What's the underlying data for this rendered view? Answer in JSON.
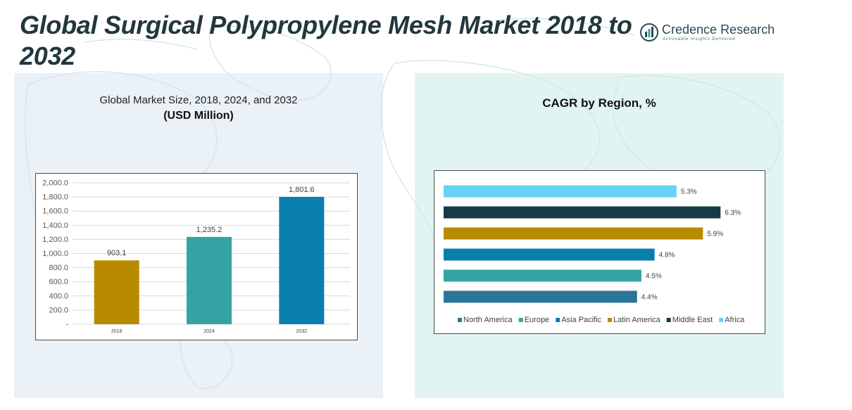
{
  "title": "Global Surgical Polypropylene Mesh Market 2018 to 2032",
  "brand": {
    "name_part1": "Credence",
    "name_part2": "Research",
    "tagline": "Actionable Insights Delivered",
    "logo_icon": "credence-logo-icon"
  },
  "colors": {
    "title": "#22373c",
    "bar_2018": "#b88a00",
    "bar_2024": "#35a3a3",
    "bar_2032": "#0a7fad",
    "north_america": "#2a7598",
    "europe": "#35a3a3",
    "asia_pacific": "#0a7fad",
    "latin_america": "#b88a00",
    "middle_east": "#163b47",
    "africa": "#66d3f5"
  },
  "chart_data": [
    {
      "type": "bar",
      "title": "Global Market Size, 2018, 2024, and 2032",
      "subtitle": "(USD Million)",
      "categories": [
        "2018",
        "2024",
        "2032"
      ],
      "values": [
        903.1,
        1235.2,
        1801.6
      ],
      "data_labels": [
        "903.1",
        "1,235.2",
        "1,801.6"
      ],
      "ylim": [
        0,
        2000
      ],
      "yticks": [
        0,
        200,
        400,
        600,
        800,
        1000,
        1200,
        1400,
        1600,
        1800,
        2000
      ],
      "ytick_labels": [
        "-",
        "200.0",
        "400.0",
        "600.0",
        "800.0",
        "1,000.0",
        "1,200.0",
        "1,400.0",
        "1,600.0",
        "1,800.0",
        "2,000.0"
      ],
      "grid": true,
      "xlabel": "",
      "ylabel": ""
    },
    {
      "type": "bar",
      "orientation": "horizontal",
      "title": "CAGR by Region, %",
      "categories": [
        "North America",
        "Europe",
        "Asia Pacific",
        "Latin America",
        "Middle East",
        "Africa"
      ],
      "values": [
        4.4,
        4.5,
        4.8,
        5.9,
        6.3,
        5.3
      ],
      "data_labels": [
        "4.4%",
        "4.5%",
        "4.8%",
        "5.9%",
        "6.3%",
        "5.3%"
      ],
      "xlim": [
        0,
        7
      ],
      "legend": "bottom",
      "grid": false
    }
  ]
}
